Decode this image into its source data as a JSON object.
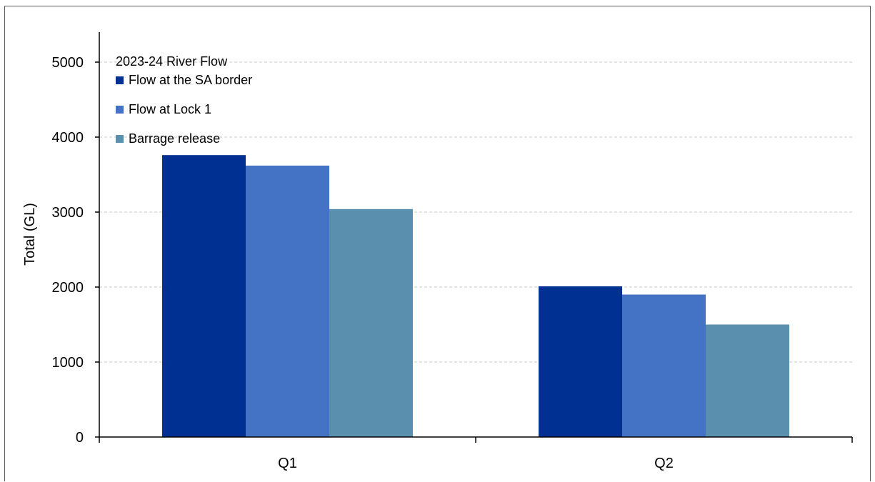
{
  "chart_data": {
    "type": "bar",
    "title": "",
    "xlabel": "",
    "ylabel": "Total (GL)",
    "ylim": [
      0,
      5400
    ],
    "yticks": [
      0,
      1000,
      2000,
      3000,
      4000,
      5000
    ],
    "grid": true,
    "legend_title": "2023-24 River Flow",
    "legend_position": "top-left",
    "categories": [
      "Q1",
      "Q2"
    ],
    "series": [
      {
        "name": "Flow at the SA border",
        "color": "#003092",
        "values": [
          3760,
          2010
        ]
      },
      {
        "name": "Flow at Lock 1",
        "color": "#4472c4",
        "values": [
          3620,
          1900
        ]
      },
      {
        "name": "Barrage release",
        "color": "#5b8fae",
        "values": [
          3040,
          1500
        ]
      }
    ]
  }
}
